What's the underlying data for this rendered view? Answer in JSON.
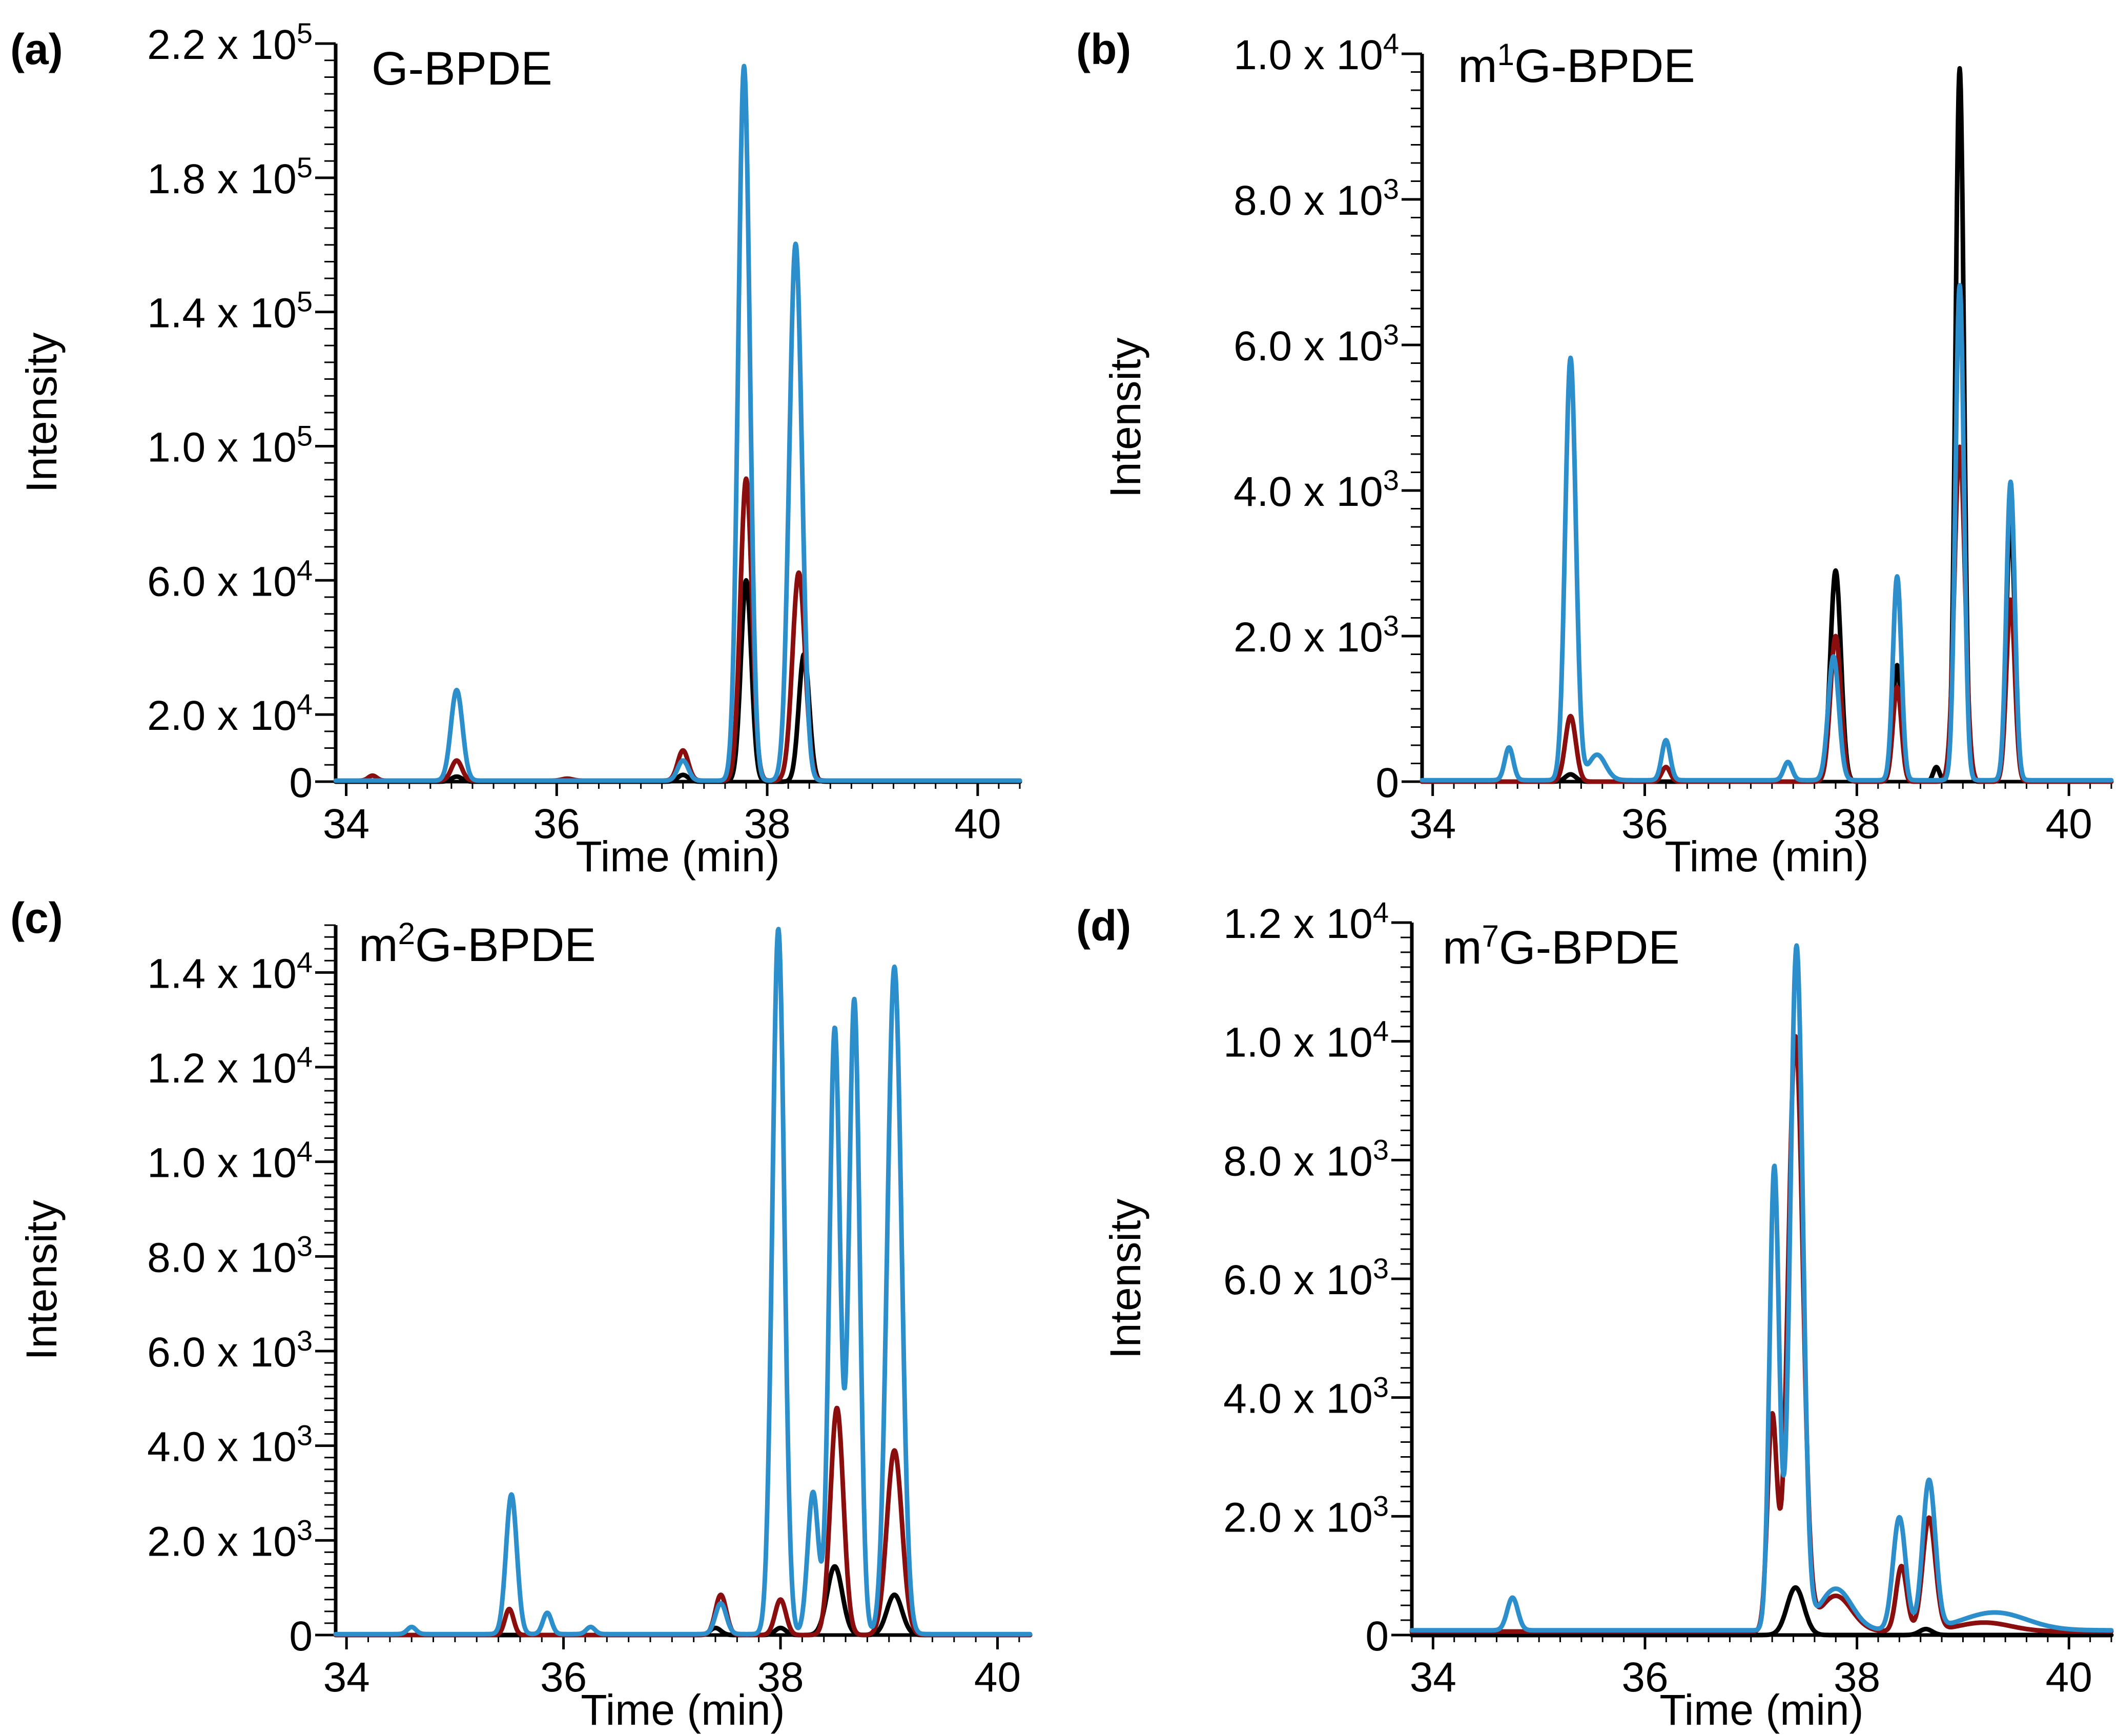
{
  "colors": {
    "black": "#000000",
    "red": "#8b0e0e",
    "blue": "#2c8fcc"
  },
  "chart_data": [
    {
      "type": "line",
      "panel": "(a)",
      "title": "G-BPDE",
      "xlabel": "Time (min)",
      "ylabel": "Intensity",
      "xlim": [
        33.9,
        40.4
      ],
      "ylim": [
        0,
        220000
      ],
      "xticks": [
        34,
        36,
        38,
        40
      ],
      "xtick_labels": [
        "34",
        "36",
        "38",
        "40"
      ],
      "yticks": [
        {
          "value": 0,
          "mant": "0",
          "exp": ""
        },
        {
          "value": 20000,
          "mant": "2.0 x 10",
          "exp": "4"
        },
        {
          "value": 60000,
          "mant": "6.0 x 10",
          "exp": "4"
        },
        {
          "value": 100000,
          "mant": "1.0 x 10",
          "exp": "5"
        },
        {
          "value": 140000,
          "mant": "1.4 x 10",
          "exp": "5"
        },
        {
          "value": 180000,
          "mant": "1.8 x 10",
          "exp": "5"
        },
        {
          "value": 220000,
          "mant": "2.2 x 10",
          "exp": "5"
        }
      ],
      "minor_step": 5000,
      "series": [
        {
          "name": "black",
          "color": "#000000",
          "baseline": 0,
          "peaks": [
            [
              35.05,
              1500,
              0.05
            ],
            [
              37.2,
              2000,
              0.05
            ],
            [
              37.8,
              60000,
              0.05
            ],
            [
              38.35,
              38000,
              0.05
            ]
          ]
        },
        {
          "name": "red",
          "color": "#8b0e0e",
          "baseline": 300,
          "peaks": [
            [
              34.25,
              1500,
              0.04
            ],
            [
              35.05,
              6000,
              0.05
            ],
            [
              36.1,
              600,
              0.05
            ],
            [
              37.2,
              9000,
              0.05
            ],
            [
              37.8,
              90000,
              0.055
            ],
            [
              38.3,
              62000,
              0.06
            ]
          ]
        },
        {
          "name": "blue",
          "color": "#2c8fcc",
          "baseline": 300,
          "peaks": [
            [
              35.05,
              27000,
              0.055
            ],
            [
              37.2,
              6000,
              0.05
            ],
            [
              37.78,
              213000,
              0.055
            ],
            [
              38.27,
              160000,
              0.06
            ]
          ]
        }
      ]
    },
    {
      "type": "line",
      "panel": "(b)",
      "title": "m1G-BPDE",
      "title_prefix": "m",
      "title_sup": "1",
      "title_suffix": "G-BPDE",
      "xlabel": "Time (min)",
      "ylabel": "Intensity",
      "xlim": [
        33.9,
        40.4
      ],
      "ylim": [
        0,
        10000
      ],
      "xticks": [
        34,
        36,
        38,
        40
      ],
      "xtick_labels": [
        "34",
        "36",
        "38",
        "40"
      ],
      "yticks": [
        {
          "value": 0,
          "mant": "0",
          "exp": ""
        },
        {
          "value": 2000,
          "mant": "2.0 x 10",
          "exp": "3"
        },
        {
          "value": 4000,
          "mant": "4.0 x 10",
          "exp": "3"
        },
        {
          "value": 6000,
          "mant": "6.0 x 10",
          "exp": "3"
        },
        {
          "value": 8000,
          "mant": "8.0 x 10",
          "exp": "3"
        },
        {
          "value": 10000,
          "mant": "1.0 x 10",
          "exp": "4"
        }
      ],
      "minor_step": 250,
      "series": [
        {
          "name": "black",
          "color": "#000000",
          "baseline": 0,
          "peaks": [
            [
              35.3,
              100,
              0.05
            ],
            [
              37.8,
              2900,
              0.05
            ],
            [
              38.38,
              1600,
              0.04
            ],
            [
              38.75,
              200,
              0.03
            ],
            [
              38.97,
              9800,
              0.04
            ],
            [
              39.45,
              3600,
              0.04
            ]
          ]
        },
        {
          "name": "red",
          "color": "#8b0e0e",
          "baseline": 0,
          "peaks": [
            [
              35.3,
              900,
              0.05
            ],
            [
              36.2,
              200,
              0.04
            ],
            [
              37.8,
              2000,
              0.05
            ],
            [
              38.38,
              1300,
              0.04
            ],
            [
              38.97,
              4600,
              0.05
            ],
            [
              39.45,
              2500,
              0.04
            ]
          ]
        },
        {
          "name": "blue",
          "color": "#2c8fcc",
          "baseline": 20,
          "peaks": [
            [
              34.72,
              450,
              0.04
            ],
            [
              35.3,
              5800,
              0.05
            ],
            [
              35.55,
              350,
              0.08
            ],
            [
              36.2,
              550,
              0.04
            ],
            [
              37.35,
              250,
              0.04
            ],
            [
              37.78,
              1700,
              0.05
            ],
            [
              38.38,
              2800,
              0.04
            ],
            [
              38.97,
              6800,
              0.04
            ],
            [
              39.45,
              4100,
              0.04
            ]
          ]
        }
      ]
    },
    {
      "type": "line",
      "panel": "(c)",
      "title": "m2G-BPDE",
      "title_prefix": "m",
      "title_sup": "2",
      "title_suffix": "G-BPDE",
      "xlabel": "Time (min)",
      "ylabel": "Intensity",
      "xlim": [
        33.9,
        40.3
      ],
      "ylim": [
        0,
        15000
      ],
      "xticks": [
        34,
        36,
        38,
        40
      ],
      "xtick_labels": [
        "34",
        "36",
        "38",
        "40"
      ],
      "yticks": [
        {
          "value": 0,
          "mant": "0",
          "exp": ""
        },
        {
          "value": 2000,
          "mant": "2.0 x 10",
          "exp": "3"
        },
        {
          "value": 4000,
          "mant": "4.0 x 10",
          "exp": "3"
        },
        {
          "value": 6000,
          "mant": "6.0 x 10",
          "exp": "3"
        },
        {
          "value": 8000,
          "mant": "8.0 x 10",
          "exp": "3"
        },
        {
          "value": 10000,
          "mant": "1.0 x 10",
          "exp": "4"
        },
        {
          "value": 12000,
          "mant": "1.2 x 10",
          "exp": "4"
        },
        {
          "value": 14000,
          "mant": "1.4 x 10",
          "exp": "4"
        }
      ],
      "minor_step": 250,
      "series": [
        {
          "name": "black",
          "color": "#000000",
          "baseline": 0,
          "peaks": [
            [
              37.4,
              150,
              0.05
            ],
            [
              38.0,
              150,
              0.05
            ],
            [
              38.5,
              1450,
              0.07
            ],
            [
              39.05,
              850,
              0.07
            ]
          ]
        },
        {
          "name": "red",
          "color": "#8b0e0e",
          "baseline": 0,
          "peaks": [
            [
              35.5,
              550,
              0.04
            ],
            [
              37.45,
              850,
              0.05
            ],
            [
              38.0,
              750,
              0.05
            ],
            [
              38.52,
              4800,
              0.06
            ],
            [
              39.05,
              3900,
              0.07
            ]
          ]
        },
        {
          "name": "blue",
          "color": "#2c8fcc",
          "baseline": 20,
          "peaks": [
            [
              34.6,
              150,
              0.04
            ],
            [
              35.52,
              2950,
              0.05
            ],
            [
              35.85,
              450,
              0.04
            ],
            [
              36.25,
              150,
              0.04
            ],
            [
              37.45,
              650,
              0.05
            ],
            [
              37.98,
              14900,
              0.055
            ],
            [
              38.3,
              3000,
              0.05
            ],
            [
              38.5,
              12800,
              0.05
            ],
            [
              38.68,
              13400,
              0.05
            ],
            [
              39.05,
              14100,
              0.065
            ]
          ]
        }
      ]
    },
    {
      "type": "line",
      "panel": "(d)",
      "title": "m7G-BPDE",
      "title_prefix": "m",
      "title_sup": "7",
      "title_suffix": "G-BPDE",
      "xlabel": "Time (min)",
      "ylabel": "Intensity",
      "xlim": [
        33.8,
        40.4
      ],
      "ylim": [
        0,
        12000
      ],
      "xticks": [
        34,
        36,
        38,
        40
      ],
      "xtick_labels": [
        "34",
        "36",
        "38",
        "40"
      ],
      "yticks": [
        {
          "value": 0,
          "mant": "0",
          "exp": ""
        },
        {
          "value": 2000,
          "mant": "2.0 x 10",
          "exp": "3"
        },
        {
          "value": 4000,
          "mant": "4.0 x 10",
          "exp": "3"
        },
        {
          "value": 6000,
          "mant": "6.0 x 10",
          "exp": "3"
        },
        {
          "value": 8000,
          "mant": "8.0 x 10",
          "exp": "3"
        },
        {
          "value": 10000,
          "mant": "1.0 x 10",
          "exp": "4"
        },
        {
          "value": 12000,
          "mant": "1.2 x 10",
          "exp": "4"
        }
      ],
      "minor_step": 250,
      "series": [
        {
          "name": "black",
          "color": "#000000",
          "baseline": 0,
          "peaks": [
            [
              37.42,
              800,
              0.08
            ],
            [
              38.65,
              100,
              0.06
            ]
          ]
        },
        {
          "name": "red",
          "color": "#8b0e0e",
          "baseline": 60,
          "peaks": [
            [
              37.2,
              3600,
              0.045
            ],
            [
              37.42,
              10000,
              0.07
            ],
            [
              37.8,
              600,
              0.15
            ],
            [
              38.42,
              1100,
              0.05
            ],
            [
              38.68,
              1900,
              0.06
            ],
            [
              39.2,
              150,
              0.25
            ]
          ]
        },
        {
          "name": "blue",
          "color": "#2c8fcc",
          "baseline": 80,
          "peaks": [
            [
              34.75,
              550,
              0.05
            ],
            [
              37.22,
              7800,
              0.045
            ],
            [
              37.43,
              11500,
              0.06
            ],
            [
              37.8,
              700,
              0.15
            ],
            [
              38.4,
              1900,
              0.06
            ],
            [
              38.68,
              2500,
              0.06
            ],
            [
              39.3,
              300,
              0.3
            ]
          ]
        }
      ]
    }
  ]
}
